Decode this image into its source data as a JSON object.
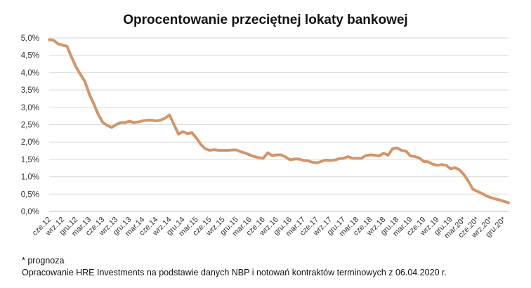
{
  "title": "Oprocentowanie przeciętnej lokaty bankowej",
  "note": "* prognoza",
  "source": "Opracowanie HRE Investments na podstawie danych NBP i notowań kontraktów terminowych z 06.04.2020 r.",
  "colors": {
    "line": "#D4956A",
    "grid": "#D9D9D9",
    "axis": "#BFBFBF"
  },
  "chart_data": {
    "type": "line",
    "title": "Oprocentowanie przeciętnej lokaty bankowej",
    "xlabel": "",
    "ylabel": "",
    "ylim": [
      0,
      5
    ],
    "y_tick_labels": [
      "0,0%",
      "0,5%",
      "1,0%",
      "1,5%",
      "2,0%",
      "2,5%",
      "3,0%",
      "3,5%",
      "4,0%",
      "4,5%",
      "5,0%"
    ],
    "grid": true,
    "x_tick_labels": [
      "cze.12",
      "wrz.12",
      "gru.12",
      "mar.13",
      "cze.13",
      "wrz.13",
      "gru.13",
      "mar.14",
      "cze.14",
      "wrz.14",
      "gru.14",
      "mar.15",
      "cze.15",
      "wrz.15",
      "gru.15",
      "mar.16",
      "cze.16",
      "wrz.16",
      "gru.16",
      "mar.17",
      "cze.17",
      "wrz.17",
      "gru.17",
      "mar.18",
      "cze.18",
      "wrz.18",
      "gru.18",
      "mar.19",
      "cze.19",
      "wrz.19",
      "gru.19",
      "mar.20*",
      "cze.20*",
      "wrz.20*",
      "gru.20*"
    ],
    "x_tick_positions": [
      0,
      3,
      6,
      9,
      12,
      15,
      18,
      21,
      24,
      27,
      30,
      33,
      36,
      39,
      42,
      45,
      48,
      51,
      54,
      57,
      60,
      63,
      66,
      69,
      72,
      75,
      78,
      81,
      84,
      87,
      90,
      93,
      96,
      99,
      102
    ],
    "x_unit": "month index starting cze.12",
    "series": [
      {
        "values": [
          4.95,
          4.93,
          4.83,
          4.79,
          4.76,
          4.45,
          4.17,
          3.95,
          3.75,
          3.38,
          3.1,
          2.8,
          2.57,
          2.48,
          2.42,
          2.5,
          2.56,
          2.56,
          2.6,
          2.56,
          2.58,
          2.61,
          2.63,
          2.63,
          2.61,
          2.63,
          2.69,
          2.78,
          2.5,
          2.23,
          2.3,
          2.24,
          2.27,
          2.12,
          1.93,
          1.81,
          1.76,
          1.78,
          1.76,
          1.76,
          1.76,
          1.77,
          1.77,
          1.72,
          1.68,
          1.63,
          1.58,
          1.55,
          1.53,
          1.69,
          1.61,
          1.63,
          1.63,
          1.57,
          1.49,
          1.51,
          1.51,
          1.47,
          1.46,
          1.42,
          1.4,
          1.44,
          1.48,
          1.47,
          1.48,
          1.52,
          1.53,
          1.58,
          1.53,
          1.53,
          1.53,
          1.61,
          1.63,
          1.62,
          1.6,
          1.68,
          1.62,
          1.81,
          1.83,
          1.76,
          1.74,
          1.6,
          1.58,
          1.54,
          1.44,
          1.43,
          1.36,
          1.33,
          1.35,
          1.33,
          1.23,
          1.26,
          1.2,
          1.06,
          0.87,
          0.64,
          0.58,
          0.52,
          0.45,
          0.4,
          0.36,
          0.33,
          0.29,
          0.25
        ]
      }
    ]
  }
}
